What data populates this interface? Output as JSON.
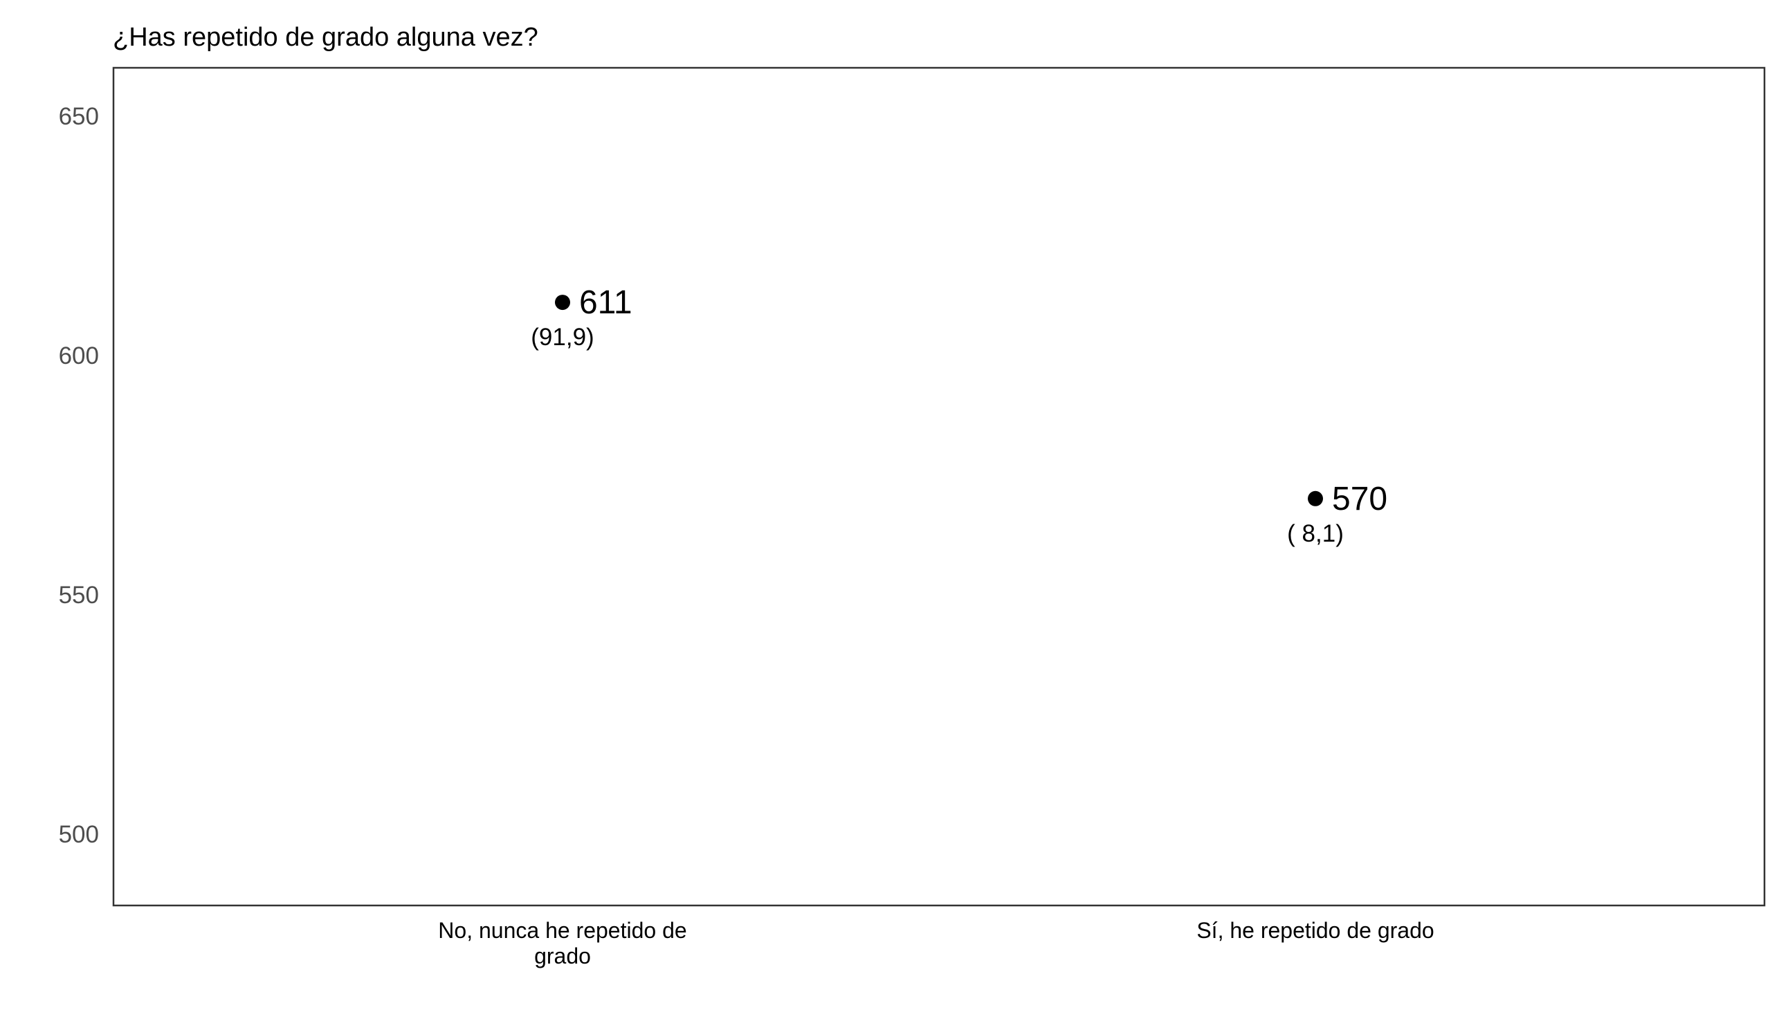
{
  "chart_data": {
    "type": "scatter",
    "title": "¿Has repetido de grado alguna vez?",
    "xlabel": "",
    "ylabel": "",
    "ylim": [
      485,
      660
    ],
    "y_ticks": [
      500,
      550,
      600,
      650
    ],
    "grid": false,
    "legend": "none",
    "categories": [
      [
        "No, nunca he repetido de",
        "grado"
      ],
      [
        "Sí, he repetido de grado"
      ]
    ],
    "points": [
      {
        "category": "No, nunca he repetido de grado",
        "value": 611,
        "value_label": "611",
        "pct_label": "(91,9)"
      },
      {
        "category": "Sí, he repetido de grado",
        "value": 570,
        "value_label": "570",
        "pct_label": "( 8,1)"
      }
    ],
    "colors": {
      "point": "#000000",
      "frame": "#333333",
      "tick_label": "#4d4d4d",
      "text": "#000000"
    }
  }
}
